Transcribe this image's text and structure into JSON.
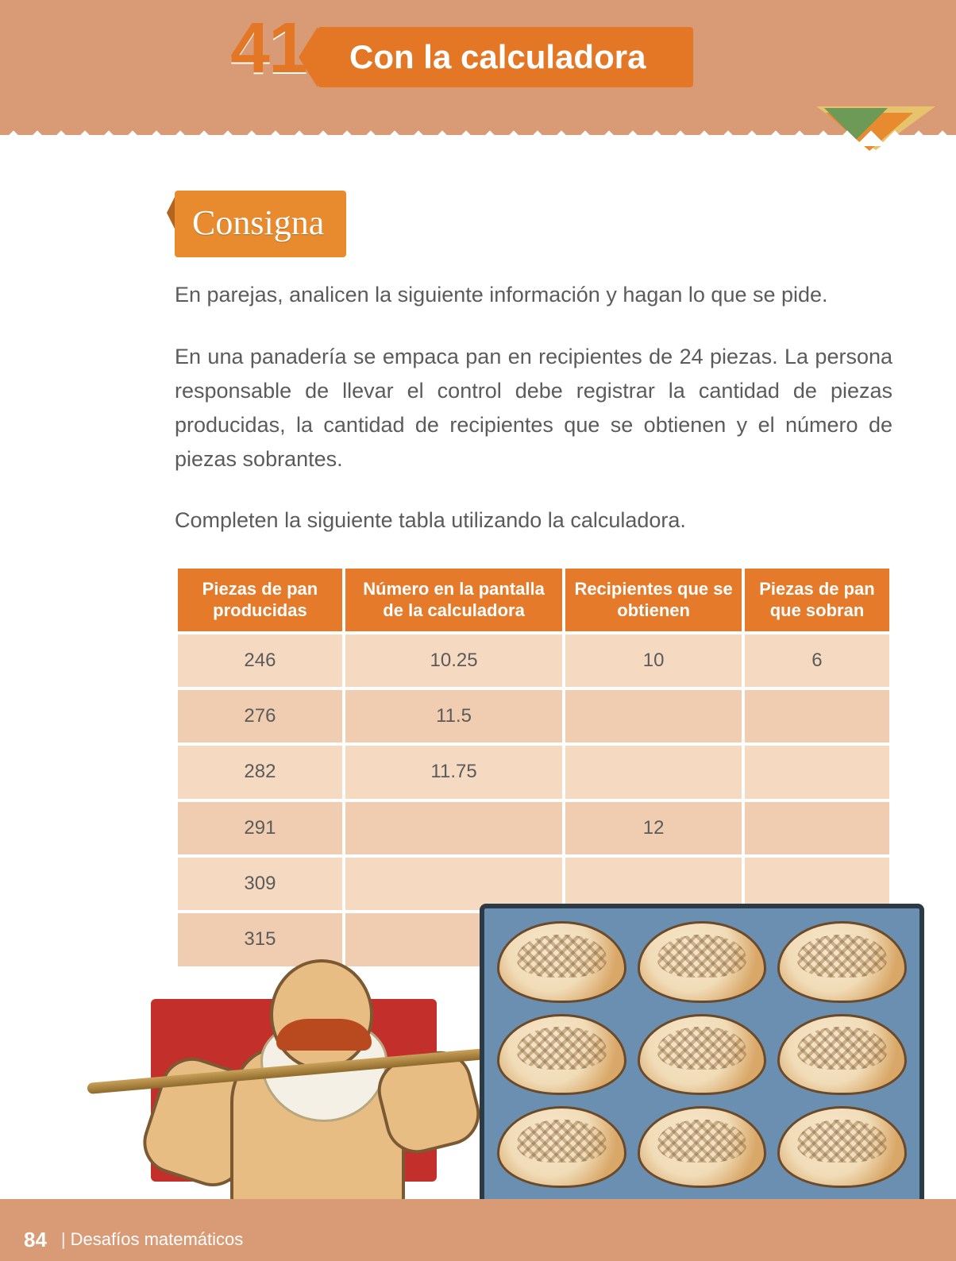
{
  "lesson": {
    "number": "41",
    "title": "Con la calculadora"
  },
  "labels": {
    "consigna": "Consigna"
  },
  "body": {
    "p1": "En parejas, analicen la siguiente información y hagan lo que se pide.",
    "p2": "En una panadería se empaca pan en recipientes de 24 piezas. La persona responsable de llevar el control debe registrar la cantidad de piezas producidas, la cantidad de recipientes que se obtienen y el número de piezas sobrantes.",
    "p3": "Completen la siguiente tabla utilizando la calculadora."
  },
  "table": {
    "headers": {
      "c1": "Piezas de pan producidas",
      "c2": "Número en la pantalla de la calculadora",
      "c3": "Recipientes que se obtienen",
      "c4": "Piezas de pan que sobran"
    },
    "rows": [
      {
        "c1": "246",
        "c2": "10.25",
        "c3": "10",
        "c4": "6"
      },
      {
        "c1": "276",
        "c2": "11.5",
        "c3": "",
        "c4": ""
      },
      {
        "c1": "282",
        "c2": "11.75",
        "c3": "",
        "c4": ""
      },
      {
        "c1": "291",
        "c2": "",
        "c3": "12",
        "c4": ""
      },
      {
        "c1": "309",
        "c2": "",
        "c3": "",
        "c4": ""
      },
      {
        "c1": "315",
        "c2": "",
        "c3": "",
        "c4": ""
      }
    ],
    "header_bg": "#e47a2a",
    "header_fg": "#ffffff",
    "row_bg_a": "#f5d9c1",
    "row_bg_b": "#f0cdb1",
    "cell_fg": "#5b5b5b"
  },
  "footer": {
    "page": "84",
    "book": "Desafíos matemáticos"
  },
  "palette": {
    "band": "#d99a76",
    "accent": "#e47726",
    "text": "#5b5b5b",
    "consigna_bg": "#e88a2e"
  },
  "illustration": {
    "tray_bg": "#6a8fb0",
    "tray_border": "#2b3a45",
    "bread_count": 9,
    "red_shape": "#c32f2b",
    "paddle": "#caa15a",
    "skin": "#e7bd84",
    "beard": "#f4f0e6",
    "mustache": "#b94a1f"
  }
}
